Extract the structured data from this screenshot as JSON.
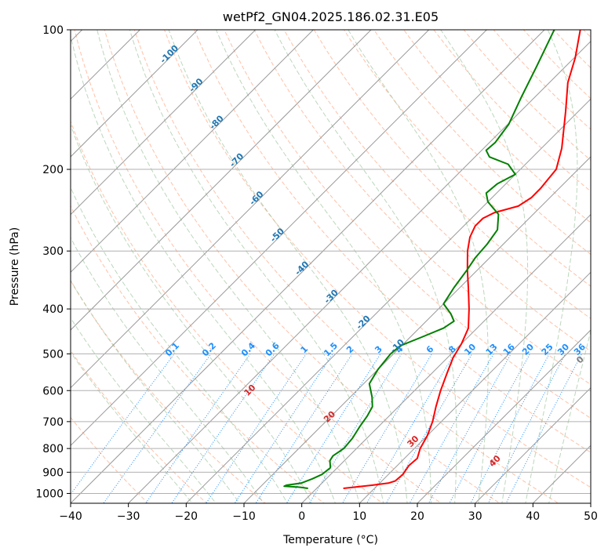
{
  "chart_data": {
    "type": "line",
    "title": "wetPf2_GN04.2025.186.02.31.E05",
    "xlabel": "Temperature (°C)",
    "ylabel": "Pressure (hPa)",
    "xlim": [
      -40,
      50
    ],
    "ylim": [
      1050,
      100
    ],
    "y_scale": "log",
    "x_ticks": [
      -40,
      -30,
      -20,
      -10,
      0,
      10,
      20,
      30,
      40,
      50
    ],
    "x_tick_labels": [
      "−40",
      "−30",
      "−20",
      "−10",
      "0",
      "10",
      "20",
      "30",
      "40",
      "50"
    ],
    "y_ticks": [
      100,
      200,
      300,
      400,
      500,
      600,
      700,
      800,
      900,
      1000
    ],
    "y_tick_labels": [
      "100",
      "200",
      "300",
      "400",
      "500",
      "600",
      "700",
      "800",
      "900",
      "1000"
    ],
    "grid": true,
    "colors": {
      "temperature": "#ff0000",
      "dewpoint": "#008000",
      "isotherm": "#999999",
      "dry_adiabat": "#ffa07a",
      "moist_adiabat": "#8fbc8f",
      "mixing_ratio": "#1e90ff",
      "isotherm_label": "#1f77b4",
      "dry_adiabat_label": "#d62728",
      "moist_adiabat_label": "#7f7f7f"
    },
    "series": [
      {
        "key": "temperature",
        "points": [
          {
            "p": 975,
            "t": 4.6
          },
          {
            "p": 960,
            "t": 9.0
          },
          {
            "p": 950,
            "t": 11.5
          },
          {
            "p": 940,
            "t": 12.3
          },
          {
            "p": 910,
            "t": 12.5
          },
          {
            "p": 870,
            "t": 12.0
          },
          {
            "p": 840,
            "t": 12.2
          },
          {
            "p": 800,
            "t": 11.0
          },
          {
            "p": 750,
            "t": 10.0
          },
          {
            "p": 700,
            "t": 8.5
          },
          {
            "p": 650,
            "t": 6.5
          },
          {
            "p": 600,
            "t": 4.5
          },
          {
            "p": 550,
            "t": 2.6
          },
          {
            "p": 510,
            "t": 1.0
          },
          {
            "p": 475,
            "t": 0.0
          },
          {
            "p": 440,
            "t": -1.5
          },
          {
            "p": 400,
            "t": -4.7
          },
          {
            "p": 360,
            "t": -8.5
          },
          {
            "p": 330,
            "t": -11.7
          },
          {
            "p": 300,
            "t": -15.0
          },
          {
            "p": 280,
            "t": -17.0
          },
          {
            "p": 265,
            "t": -18.0
          },
          {
            "p": 255,
            "t": -18.0
          },
          {
            "p": 248,
            "t": -17.0
          },
          {
            "p": 240,
            "t": -14.0
          },
          {
            "p": 230,
            "t": -13.2
          },
          {
            "p": 220,
            "t": -13.2
          },
          {
            "p": 200,
            "t": -13.8
          },
          {
            "p": 180,
            "t": -16.5
          },
          {
            "p": 150,
            "t": -22.2
          },
          {
            "p": 130,
            "t": -26.8
          },
          {
            "p": 115,
            "t": -29.8
          },
          {
            "p": 100,
            "t": -33.8
          }
        ]
      },
      {
        "key": "dewpoint",
        "points": [
          {
            "p": 975,
            "t": -1.5
          },
          {
            "p": 970,
            "t": -3.0
          },
          {
            "p": 965,
            "t": -6.0
          },
          {
            "p": 960,
            "t": -5.8
          },
          {
            "p": 950,
            "t": -3.6
          },
          {
            "p": 930,
            "t": -2.4
          },
          {
            "p": 910,
            "t": -1.5
          },
          {
            "p": 880,
            "t": -1.2
          },
          {
            "p": 850,
            "t": -2.5
          },
          {
            "p": 830,
            "t": -2.8
          },
          {
            "p": 800,
            "t": -2.2
          },
          {
            "p": 760,
            "t": -2.5
          },
          {
            "p": 720,
            "t": -3.2
          },
          {
            "p": 680,
            "t": -3.8
          },
          {
            "p": 650,
            "t": -4.5
          },
          {
            "p": 620,
            "t": -6.2
          },
          {
            "p": 580,
            "t": -9.0
          },
          {
            "p": 540,
            "t": -10.0
          },
          {
            "p": 500,
            "t": -10.5
          },
          {
            "p": 480,
            "t": -10.2
          },
          {
            "p": 460,
            "t": -8.0
          },
          {
            "p": 440,
            "t": -5.8
          },
          {
            "p": 425,
            "t": -5.2
          },
          {
            "p": 410,
            "t": -7.0
          },
          {
            "p": 390,
            "t": -10.0
          },
          {
            "p": 360,
            "t": -11.0
          },
          {
            "p": 330,
            "t": -11.8
          },
          {
            "p": 310,
            "t": -12.5
          },
          {
            "p": 290,
            "t": -12.8
          },
          {
            "p": 270,
            "t": -13.5
          },
          {
            "p": 250,
            "t": -16.0
          },
          {
            "p": 235,
            "t": -20.0
          },
          {
            "p": 225,
            "t": -21.8
          },
          {
            "p": 215,
            "t": -21.5
          },
          {
            "p": 205,
            "t": -20.0
          },
          {
            "p": 195,
            "t": -23.0
          },
          {
            "p": 188,
            "t": -27.5
          },
          {
            "p": 182,
            "t": -29.2
          },
          {
            "p": 175,
            "t": -29.0
          },
          {
            "p": 160,
            "t": -29.8
          },
          {
            "p": 140,
            "t": -32.3
          },
          {
            "p": 120,
            "t": -35.0
          },
          {
            "p": 100,
            "t": -38.3
          }
        ]
      }
    ],
    "isotherm_labels": [
      {
        "t": -100,
        "text": "-100",
        "p": 114
      },
      {
        "t": -90,
        "text": "-90",
        "p": 133
      },
      {
        "t": -80,
        "text": "-80",
        "p": 160
      },
      {
        "t": -70,
        "text": "-70",
        "p": 193
      },
      {
        "t": -60,
        "text": "-60",
        "p": 233
      },
      {
        "t": -50,
        "text": "-50",
        "p": 280
      },
      {
        "t": -40,
        "text": "-40",
        "p": 330
      },
      {
        "t": -30,
        "text": "-30",
        "p": 380
      },
      {
        "t": -20,
        "text": "-20",
        "p": 432
      },
      {
        "t": -10,
        "text": "-10",
        "p": 486
      }
    ],
    "mixing_ratio_labels": [
      "0.1",
      "0.2",
      "0.4",
      "0.6",
      "1",
      "1.5",
      "2",
      "3",
      "4",
      "6",
      "8",
      "10",
      "13",
      "16",
      "20",
      "25",
      "30",
      "36"
    ],
    "mixing_ratio_label_pressure": 500,
    "dry_adiabat_labels": [
      {
        "theta_c": 10,
        "text": "10",
        "p": 605
      },
      {
        "theta_c": 20,
        "text": "20",
        "p": 690
      },
      {
        "theta_c": 30,
        "text": "30",
        "p": 780
      },
      {
        "theta_c": 40,
        "text": "40",
        "p": 860
      }
    ],
    "moist_adiabat_labels": [
      {
        "text": "0",
        "t": 24,
        "p": 520
      }
    ]
  }
}
